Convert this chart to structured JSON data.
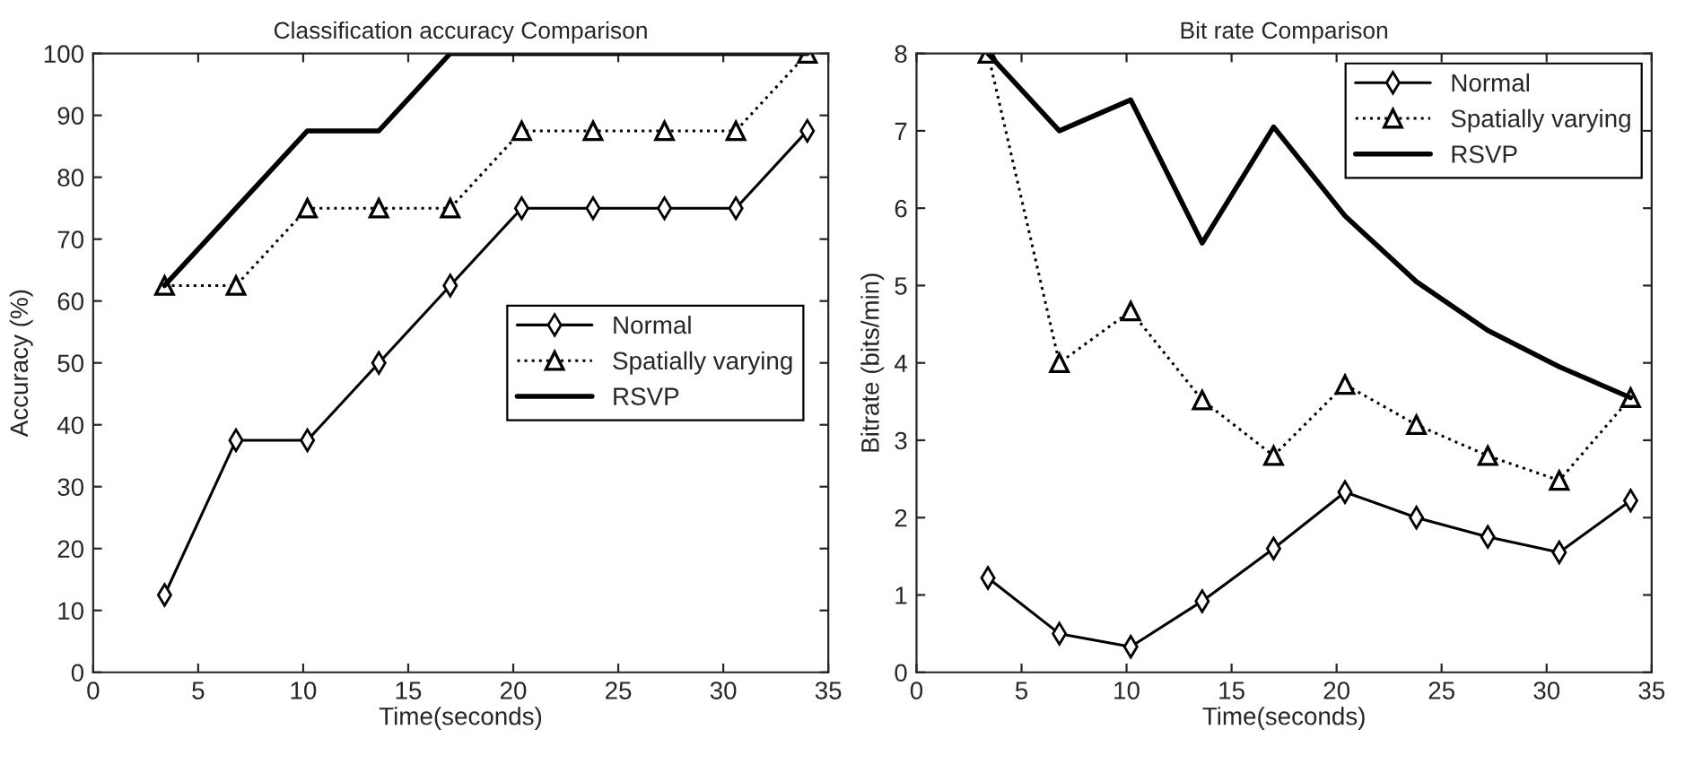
{
  "chart_data": [
    {
      "type": "line",
      "title": "Classification accuracy Comparison",
      "xlabel": "Time(seconds)",
      "ylabel": "Accuracy (%)",
      "x": [
        3.4,
        6.8,
        10.2,
        13.6,
        17,
        20.4,
        23.8,
        27.2,
        30.6,
        34
      ],
      "xlim": [
        0,
        35
      ],
      "xticks": [
        0,
        5,
        10,
        15,
        20,
        25,
        30,
        35
      ],
      "ylim": [
        0,
        100
      ],
      "yticks": [
        0,
        10,
        20,
        30,
        40,
        50,
        60,
        70,
        80,
        90,
        100
      ],
      "grid": false,
      "legend": "right",
      "series": [
        {
          "name": "Normal",
          "color": "#000000",
          "marker": "diamond",
          "line_style": "solid",
          "values": [
            12.5,
            37.5,
            37.5,
            50,
            62.5,
            75,
            75,
            75,
            75,
            87.5
          ]
        },
        {
          "name": "Spatially varying",
          "color": "#000000",
          "marker": "triangle",
          "line_style": "dotted",
          "values": [
            62.5,
            62.5,
            75,
            75,
            75,
            87.5,
            87.5,
            87.5,
            87.5,
            100
          ]
        },
        {
          "name": "RSVP",
          "color": "#000000",
          "marker": "none",
          "line_style": "solid",
          "values": [
            62.5,
            75,
            87.5,
            87.5,
            100,
            100,
            100,
            100,
            100,
            100
          ]
        }
      ]
    },
    {
      "type": "line",
      "title": "Bit rate Comparison",
      "xlabel": "Time(seconds)",
      "ylabel": "Bitrate (bits/min)",
      "x": [
        3.4,
        6.8,
        10.2,
        13.6,
        17,
        20.4,
        23.8,
        27.2,
        30.6,
        34
      ],
      "xlim": [
        0,
        35
      ],
      "xticks": [
        0,
        5,
        10,
        15,
        20,
        25,
        30,
        35
      ],
      "ylim": [
        0,
        8
      ],
      "yticks": [
        0,
        1,
        2,
        3,
        4,
        5,
        6,
        7,
        8
      ],
      "grid": false,
      "legend": "top right",
      "series": [
        {
          "name": "Normal",
          "color": "#000000",
          "marker": "diamond",
          "line_style": "solid",
          "values": [
            1.22,
            0.5,
            0.33,
            0.92,
            1.6,
            2.33,
            2.0,
            1.75,
            1.55,
            2.22
          ]
        },
        {
          "name": "Spatially varying",
          "color": "#000000",
          "marker": "triangle",
          "line_style": "dotted",
          "values": [
            8,
            4,
            4.67,
            3.52,
            2.8,
            3.72,
            3.2,
            2.8,
            2.48,
            3.55
          ]
        },
        {
          "name": "RSVP",
          "color": "#000000",
          "marker": "none",
          "line_style": "solid",
          "values": [
            8,
            7,
            7.4,
            5.55,
            7.05,
            5.9,
            5.05,
            4.42,
            3.95,
            3.55
          ]
        }
      ]
    }
  ]
}
